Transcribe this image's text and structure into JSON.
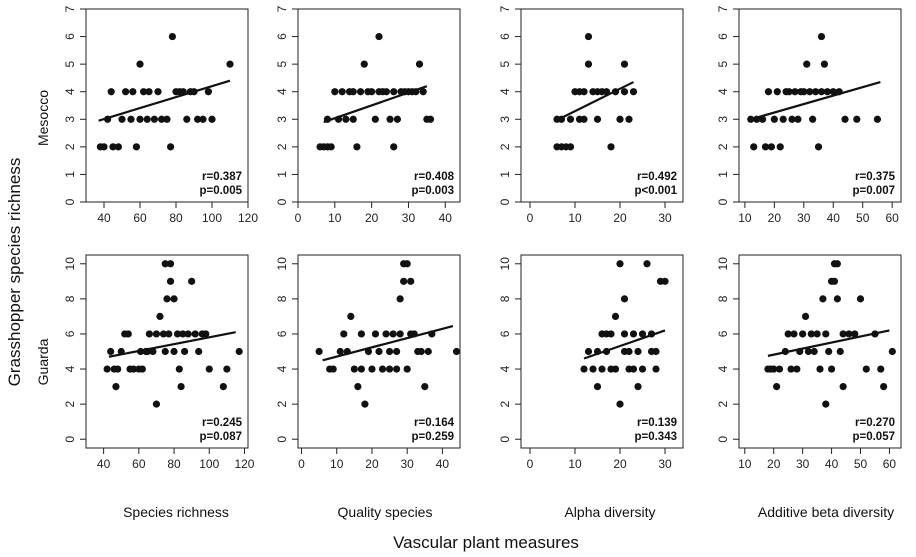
{
  "figure": {
    "y_title": "Grasshopper species richness",
    "x_title": "Vascular plant measures",
    "row_labels": [
      "Mesocco",
      "Guarda"
    ],
    "column_labels": [
      "Species richness",
      "Quality species",
      "Alpha diversity",
      "Additive beta diversity"
    ],
    "point_color": "#111111"
  },
  "chart_data": [
    {
      "type": "scatter",
      "row": "Mesocco",
      "xlabel": "Species richness",
      "xlim": [
        30,
        120
      ],
      "xticks": [
        40,
        60,
        80,
        100,
        120
      ],
      "ylim": [
        0,
        7
      ],
      "yticks": [
        0,
        1,
        2,
        3,
        4,
        5,
        6,
        7
      ],
      "r": "r=0.387",
      "p": "p=0.005",
      "trend": [
        [
          37,
          2.95
        ],
        [
          110,
          4.4
        ]
      ],
      "points": [
        [
          38,
          2
        ],
        [
          40,
          2
        ],
        [
          42,
          3
        ],
        [
          45,
          2
        ],
        [
          48,
          2
        ],
        [
          44,
          4
        ],
        [
          50,
          3
        ],
        [
          52,
          4
        ],
        [
          55,
          3
        ],
        [
          56,
          4
        ],
        [
          58,
          2
        ],
        [
          60,
          3
        ],
        [
          60,
          5
        ],
        [
          62,
          4
        ],
        [
          64,
          3
        ],
        [
          65,
          4
        ],
        [
          68,
          3
        ],
        [
          70,
          4
        ],
        [
          72,
          3
        ],
        [
          75,
          3
        ],
        [
          77,
          2
        ],
        [
          78,
          6
        ],
        [
          80,
          4
        ],
        [
          82,
          4
        ],
        [
          84,
          4
        ],
        [
          86,
          3
        ],
        [
          88,
          4
        ],
        [
          90,
          4
        ],
        [
          92,
          3
        ],
        [
          95,
          3
        ],
        [
          98,
          4
        ],
        [
          100,
          3
        ],
        [
          110,
          5
        ]
      ]
    },
    {
      "type": "scatter",
      "row": "Mesocco",
      "xlabel": "Quality species",
      "xlim": [
        0,
        44
      ],
      "xticks": [
        0,
        10,
        20,
        30,
        40
      ],
      "ylim": [
        0,
        7
      ],
      "yticks": [
        0,
        1,
        2,
        3,
        4,
        5,
        6,
        7
      ],
      "r": "r=0.408",
      "p": "p=0.003",
      "trend": [
        [
          7,
          2.9
        ],
        [
          35,
          4.2
        ]
      ],
      "points": [
        [
          6,
          2
        ],
        [
          7,
          2
        ],
        [
          8,
          2
        ],
        [
          8,
          3
        ],
        [
          9,
          2
        ],
        [
          10,
          4
        ],
        [
          11,
          3
        ],
        [
          12,
          4
        ],
        [
          13,
          3
        ],
        [
          14,
          4
        ],
        [
          15,
          3
        ],
        [
          15,
          4
        ],
        [
          16,
          2
        ],
        [
          17,
          4
        ],
        [
          18,
          5
        ],
        [
          19,
          4
        ],
        [
          20,
          4
        ],
        [
          21,
          3
        ],
        [
          22,
          6
        ],
        [
          22,
          4
        ],
        [
          23,
          4
        ],
        [
          24,
          4
        ],
        [
          25,
          3
        ],
        [
          26,
          4
        ],
        [
          26,
          2
        ],
        [
          27,
          3
        ],
        [
          28,
          4
        ],
        [
          29,
          4
        ],
        [
          30,
          4
        ],
        [
          31,
          4
        ],
        [
          32,
          4
        ],
        [
          33,
          5
        ],
        [
          34,
          4
        ],
        [
          35,
          3
        ],
        [
          36,
          3
        ]
      ]
    },
    {
      "type": "scatter",
      "row": "Mesocco",
      "xlabel": "Alpha diversity",
      "xlim": [
        -2,
        34
      ],
      "xticks": [
        0,
        10,
        20,
        30
      ],
      "ylim": [
        0,
        7
      ],
      "yticks": [
        0,
        1,
        2,
        3,
        4,
        5,
        6,
        7
      ],
      "r": "r=0.492",
      "p": "p<0.001",
      "trend": [
        [
          7,
          3.05
        ],
        [
          23,
          4.35
        ]
      ],
      "points": [
        [
          6,
          2
        ],
        [
          6,
          3
        ],
        [
          7,
          2
        ],
        [
          7,
          3
        ],
        [
          8,
          2
        ],
        [
          9,
          2
        ],
        [
          9,
          3
        ],
        [
          10,
          4
        ],
        [
          11,
          3
        ],
        [
          11,
          4
        ],
        [
          12,
          3
        ],
        [
          12,
          4
        ],
        [
          13,
          5
        ],
        [
          13,
          6
        ],
        [
          14,
          4
        ],
        [
          15,
          4
        ],
        [
          15,
          3
        ],
        [
          16,
          4
        ],
        [
          17,
          4
        ],
        [
          18,
          2
        ],
        [
          19,
          4
        ],
        [
          20,
          3
        ],
        [
          21,
          5
        ],
        [
          21,
          4
        ],
        [
          22,
          3
        ],
        [
          23,
          4
        ]
      ]
    },
    {
      "type": "scatter",
      "row": "Mesocco",
      "xlabel": "Additive beta diversity",
      "xlim": [
        8,
        63
      ],
      "xticks": [
        10,
        20,
        30,
        40,
        50,
        60
      ],
      "ylim": [
        0,
        7
      ],
      "yticks": [
        0,
        1,
        2,
        3,
        4,
        5,
        6,
        7
      ],
      "r": "r=0.375",
      "p": "p=0.007",
      "trend": [
        [
          12,
          3.0
        ],
        [
          56,
          4.35
        ]
      ],
      "points": [
        [
          12,
          3
        ],
        [
          13,
          2
        ],
        [
          14,
          3
        ],
        [
          16,
          3
        ],
        [
          17,
          2
        ],
        [
          18,
          4
        ],
        [
          19,
          2
        ],
        [
          20,
          3
        ],
        [
          21,
          4
        ],
        [
          22,
          2
        ],
        [
          23,
          3
        ],
        [
          24,
          4
        ],
        [
          25,
          4
        ],
        [
          26,
          3
        ],
        [
          27,
          4
        ],
        [
          28,
          3
        ],
        [
          29,
          4
        ],
        [
          30,
          4
        ],
        [
          31,
          5
        ],
        [
          32,
          4
        ],
        [
          33,
          3
        ],
        [
          34,
          4
        ],
        [
          35,
          2
        ],
        [
          36,
          4
        ],
        [
          36,
          6
        ],
        [
          37,
          5
        ],
        [
          38,
          4
        ],
        [
          40,
          4
        ],
        [
          42,
          4
        ],
        [
          44,
          3
        ],
        [
          48,
          3
        ],
        [
          55,
          3
        ]
      ]
    },
    {
      "type": "scatter",
      "row": "Guarda",
      "xlabel": "Species richness",
      "xlim": [
        30,
        122
      ],
      "xticks": [
        40,
        60,
        80,
        100,
        120
      ],
      "ylim": [
        -0.5,
        10.5
      ],
      "yticks": [
        0,
        2,
        4,
        6,
        8,
        10
      ],
      "r": "r=0.245",
      "p": "p=0.087",
      "trend": [
        [
          43,
          4.7
        ],
        [
          115,
          6.1
        ]
      ],
      "points": [
        [
          42,
          4
        ],
        [
          44,
          5
        ],
        [
          46,
          4
        ],
        [
          47,
          3
        ],
        [
          48,
          4
        ],
        [
          50,
          5
        ],
        [
          52,
          6
        ],
        [
          54,
          6
        ],
        [
          55,
          4
        ],
        [
          57,
          4
        ],
        [
          60,
          4
        ],
        [
          61,
          5
        ],
        [
          62,
          4
        ],
        [
          64,
          5
        ],
        [
          65,
          5
        ],
        [
          66,
          6
        ],
        [
          68,
          5
        ],
        [
          70,
          6
        ],
        [
          70,
          2
        ],
        [
          72,
          7
        ],
        [
          74,
          6
        ],
        [
          75,
          5
        ],
        [
          75,
          10
        ],
        [
          76,
          8
        ],
        [
          77,
          6
        ],
        [
          78,
          9
        ],
        [
          78,
          10
        ],
        [
          80,
          8
        ],
        [
          80,
          5
        ],
        [
          82,
          6
        ],
        [
          83,
          4
        ],
        [
          84,
          3
        ],
        [
          85,
          6
        ],
        [
          86,
          5
        ],
        [
          88,
          6
        ],
        [
          90,
          9
        ],
        [
          92,
          6
        ],
        [
          94,
          5
        ],
        [
          96,
          6
        ],
        [
          98,
          6
        ],
        [
          100,
          4
        ],
        [
          108,
          3
        ],
        [
          110,
          4
        ],
        [
          117,
          5
        ]
      ]
    },
    {
      "type": "scatter",
      "row": "Guarda",
      "xlabel": "Quality species",
      "xlim": [
        -1,
        45
      ],
      "xticks": [
        0,
        10,
        20,
        30,
        40
      ],
      "ylim": [
        -0.5,
        10.5
      ],
      "yticks": [
        0,
        2,
        4,
        6,
        8,
        10
      ],
      "r": "r=0.164",
      "p": "p=0.259",
      "trend": [
        [
          6,
          4.5
        ],
        [
          43,
          6.45
        ]
      ],
      "points": [
        [
          5,
          5
        ],
        [
          8,
          4
        ],
        [
          9,
          4
        ],
        [
          11,
          5
        ],
        [
          12,
          6
        ],
        [
          13,
          5
        ],
        [
          14,
          7
        ],
        [
          15,
          4
        ],
        [
          16,
          3
        ],
        [
          17,
          4
        ],
        [
          17,
          6
        ],
        [
          18,
          2
        ],
        [
          19,
          5
        ],
        [
          20,
          4
        ],
        [
          21,
          6
        ],
        [
          22,
          5
        ],
        [
          23,
          4
        ],
        [
          24,
          6
        ],
        [
          25,
          4
        ],
        [
          25,
          5
        ],
        [
          26,
          6
        ],
        [
          27,
          4
        ],
        [
          27,
          5
        ],
        [
          28,
          8
        ],
        [
          28,
          6
        ],
        [
          29,
          9
        ],
        [
          29,
          10
        ],
        [
          30,
          10
        ],
        [
          30,
          4
        ],
        [
          31,
          9
        ],
        [
          31,
          6
        ],
        [
          32,
          6
        ],
        [
          33,
          5
        ],
        [
          34,
          5
        ],
        [
          35,
          3
        ],
        [
          36,
          5
        ],
        [
          37,
          6
        ],
        [
          44,
          5
        ]
      ]
    },
    {
      "type": "scatter",
      "row": "Guarda",
      "xlabel": "Alpha diversity",
      "xlim": [
        -2,
        34
      ],
      "xticks": [
        0,
        10,
        20,
        30
      ],
      "ylim": [
        -0.5,
        10.5
      ],
      "yticks": [
        0,
        2,
        4,
        6,
        8,
        10
      ],
      "r": "r=0.139",
      "p": "p=0.343",
      "trend": [
        [
          12,
          4.6
        ],
        [
          30,
          6.2
        ]
      ],
      "points": [
        [
          12,
          4
        ],
        [
          13,
          5
        ],
        [
          14,
          4
        ],
        [
          15,
          3
        ],
        [
          15,
          5
        ],
        [
          16,
          6
        ],
        [
          16,
          4
        ],
        [
          17,
          5
        ],
        [
          17,
          6
        ],
        [
          18,
          4
        ],
        [
          18,
          6
        ],
        [
          19,
          7
        ],
        [
          19,
          4
        ],
        [
          20,
          10
        ],
        [
          20,
          2
        ],
        [
          21,
          8
        ],
        [
          21,
          5
        ],
        [
          21,
          6
        ],
        [
          22,
          5
        ],
        [
          22,
          4
        ],
        [
          23,
          6
        ],
        [
          23,
          4
        ],
        [
          24,
          5
        ],
        [
          24,
          3
        ],
        [
          25,
          6
        ],
        [
          25,
          4
        ],
        [
          26,
          10
        ],
        [
          27,
          6
        ],
        [
          27,
          5
        ],
        [
          28,
          5
        ],
        [
          28,
          4
        ],
        [
          29,
          9
        ],
        [
          30,
          9
        ]
      ]
    },
    {
      "type": "scatter",
      "row": "Guarda",
      "xlabel": "Additive beta diversity",
      "xlim": [
        8,
        64
      ],
      "xticks": [
        10,
        20,
        30,
        40,
        50,
        60
      ],
      "ylim": [
        -0.5,
        10.5
      ],
      "yticks": [
        0,
        2,
        4,
        6,
        8,
        10
      ],
      "r": "r=0.270",
      "p": "p=0.057",
      "trend": [
        [
          18,
          4.75
        ],
        [
          60,
          6.2
        ]
      ],
      "points": [
        [
          18,
          4
        ],
        [
          19,
          4
        ],
        [
          20,
          4
        ],
        [
          21,
          3
        ],
        [
          22,
          4
        ],
        [
          24,
          5
        ],
        [
          25,
          6
        ],
        [
          26,
          4
        ],
        [
          27,
          6
        ],
        [
          28,
          4
        ],
        [
          29,
          5
        ],
        [
          30,
          6
        ],
        [
          31,
          7
        ],
        [
          32,
          5
        ],
        [
          33,
          6
        ],
        [
          34,
          5
        ],
        [
          35,
          6
        ],
        [
          36,
          4
        ],
        [
          37,
          8
        ],
        [
          38,
          6
        ],
        [
          38,
          2
        ],
        [
          39,
          5
        ],
        [
          40,
          4
        ],
        [
          40,
          9
        ],
        [
          41,
          10
        ],
        [
          41,
          9
        ],
        [
          42,
          10
        ],
        [
          42,
          8
        ],
        [
          43,
          5
        ],
        [
          44,
          6
        ],
        [
          44,
          3
        ],
        [
          46,
          6
        ],
        [
          48,
          6
        ],
        [
          50,
          8
        ],
        [
          52,
          4
        ],
        [
          55,
          6
        ],
        [
          57,
          4
        ],
        [
          58,
          3
        ],
        [
          61,
          5
        ]
      ]
    }
  ]
}
